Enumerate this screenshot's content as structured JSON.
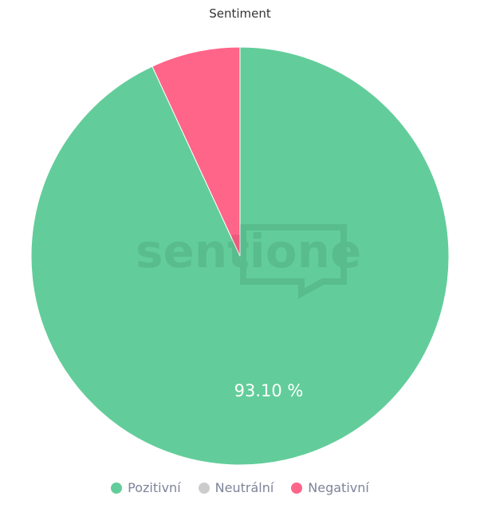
{
  "chart_data": {
    "type": "pie",
    "title": "Sentiment",
    "categories": [
      "Pozitivní",
      "Neutrální",
      "Negativní"
    ],
    "values": [
      93.1,
      0,
      6.9
    ],
    "colors": [
      "#62cd9a",
      "#cccccc",
      "#ff6489"
    ],
    "data_labels": [
      "93.10 %",
      "",
      ""
    ],
    "legend_position": "bottom",
    "watermark": "sentione"
  }
}
